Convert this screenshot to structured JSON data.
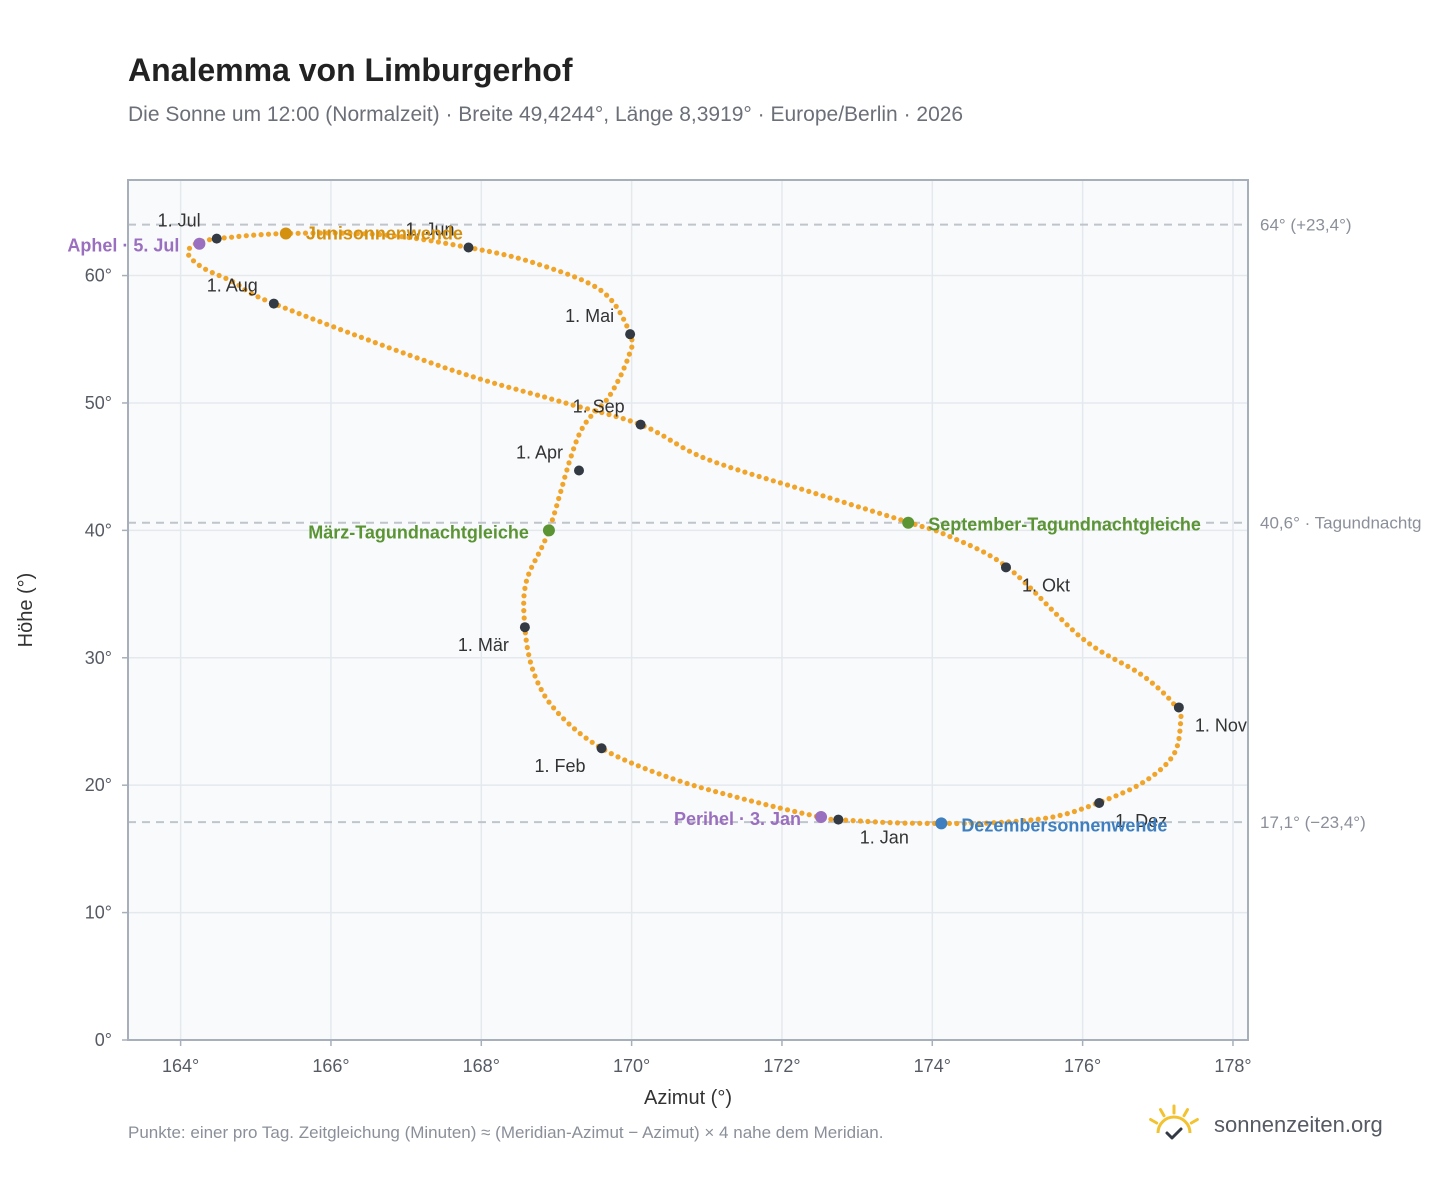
{
  "header": {
    "title": "Analemma von Limburgerhof",
    "subtitle": "Die Sonne um 12:00 (Normalzeit) · Breite 49,4244°, Länge 8,3919° · Europe/Berlin · 2026"
  },
  "footer": {
    "note": "Punkte: einer pro Tag. Zeitgleichung (Minuten) ≈ (Meridian-Azimut − Azimut) × 4 nahe dem Meridian.",
    "brand": "sonnenzeiten.org"
  },
  "colors": {
    "curve": "#f0a52a",
    "month_dot": "#333a44",
    "solstice_june": "#d4900f",
    "equinox": "#5a9433",
    "solstice_december": "#3f7fbf",
    "apsis": "#9b6fbf",
    "reference_line": "#c0c5cc",
    "plot_background": "#f8fafc",
    "grid": "#e5e9ee",
    "frame": "#a7afba",
    "brand_icon": "#f2c230"
  },
  "icons": {
    "brand": "sun-check-icon"
  },
  "chart_data": {
    "type": "scatter",
    "xlabel": "Azimut (°)",
    "ylabel": "Höhe (°)",
    "xlim": [
      163.3,
      178.2
    ],
    "ylim": [
      0,
      67.5
    ],
    "xticks": [
      "164°",
      "166°",
      "168°",
      "170°",
      "172°",
      "174°",
      "176°",
      "178°"
    ],
    "yticks": [
      "0°",
      "10°",
      "20°",
      "30°",
      "40°",
      "50°",
      "60°"
    ],
    "grid": true,
    "series": [
      {
        "values": [
          [
            172.75,
            17.3
          ],
          [
            173.5,
            17.05
          ],
          [
            174.12,
            17.0
          ],
          [
            174.8,
            17.05
          ],
          [
            175.6,
            17.5
          ],
          [
            176.2,
            18.6
          ],
          [
            176.8,
            20.2
          ],
          [
            177.2,
            22.3
          ],
          [
            177.3,
            24.7
          ],
          [
            177.25,
            26.1
          ],
          [
            176.8,
            28.6
          ],
          [
            176.0,
            31.5
          ],
          [
            175.0,
            37.1
          ],
          [
            174.2,
            39.6
          ],
          [
            173.7,
            40.6
          ],
          [
            172.5,
            42.8
          ],
          [
            171.0,
            45.6
          ],
          [
            170.12,
            48.3
          ],
          [
            169.0,
            50.2
          ],
          [
            167.5,
            52.8
          ],
          [
            165.24,
            57.8
          ],
          [
            164.7,
            59.5
          ],
          [
            164.3,
            60.6
          ],
          [
            164.1,
            61.7
          ],
          [
            164.2,
            62.5
          ],
          [
            164.5,
            62.9
          ],
          [
            165.4,
            63.3
          ],
          [
            166.7,
            63.2
          ],
          [
            167.83,
            62.2
          ],
          [
            168.7,
            61.0
          ],
          [
            169.6,
            58.8
          ],
          [
            169.98,
            55.4
          ],
          [
            169.95,
            53.5
          ],
          [
            169.7,
            50.5
          ],
          [
            169.3,
            47.5
          ],
          [
            168.9,
            40.0
          ],
          [
            168.6,
            36.0
          ],
          [
            168.58,
            32.4
          ],
          [
            168.7,
            28.8
          ],
          [
            169.0,
            25.8
          ],
          [
            169.6,
            22.9
          ],
          [
            170.5,
            20.6
          ],
          [
            171.5,
            18.9
          ],
          [
            172.5,
            17.5
          ],
          [
            172.75,
            17.3
          ]
        ]
      }
    ],
    "months": [
      {
        "label": "1. Jan",
        "x": 172.75,
        "y": 17.3
      },
      {
        "label": "1. Feb",
        "x": 169.6,
        "y": 22.9
      },
      {
        "label": "1. Mär",
        "x": 168.58,
        "y": 32.4
      },
      {
        "label": "1. Apr",
        "x": 169.3,
        "y": 44.7
      },
      {
        "label": "1. Mai",
        "x": 169.98,
        "y": 55.4
      },
      {
        "label": "1. Jun",
        "x": 167.83,
        "y": 62.2
      },
      {
        "label": "1. Jul",
        "x": 164.48,
        "y": 62.9
      },
      {
        "label": "1. Aug",
        "x": 165.24,
        "y": 57.8
      },
      {
        "label": "1. Sep",
        "x": 170.12,
        "y": 48.3
      },
      {
        "label": "1. Okt",
        "x": 174.98,
        "y": 37.1
      },
      {
        "label": "1. Nov",
        "x": 177.28,
        "y": 26.1
      },
      {
        "label": "1. Dez",
        "x": 176.22,
        "y": 18.6
      }
    ],
    "events": [
      {
        "label": "Junisonnenwende",
        "x": 165.4,
        "y": 63.3,
        "color": "solstice_june"
      },
      {
        "label": "März-Tagundnachtgleiche",
        "x": 168.9,
        "y": 40.0,
        "color": "equinox"
      },
      {
        "label": "September-Tagundnachtgleiche",
        "x": 173.68,
        "y": 40.6,
        "color": "equinox"
      },
      {
        "label": "Dezembersonnenwende",
        "x": 174.12,
        "y": 17.0,
        "color": "solstice_december"
      },
      {
        "label": "Aphel · 5. Jul",
        "x": 164.25,
        "y": 62.5,
        "color": "apsis"
      },
      {
        "label": "Perihel · 3. Jan",
        "x": 172.52,
        "y": 17.5,
        "color": "apsis"
      }
    ],
    "reference_lines": [
      {
        "y": 64.0,
        "label": "64° (+23,4°)"
      },
      {
        "y": 40.6,
        "label": "40,6° · Tagundnachtg"
      },
      {
        "y": 17.1,
        "label": "17,1° (−23,4°)"
      }
    ]
  }
}
